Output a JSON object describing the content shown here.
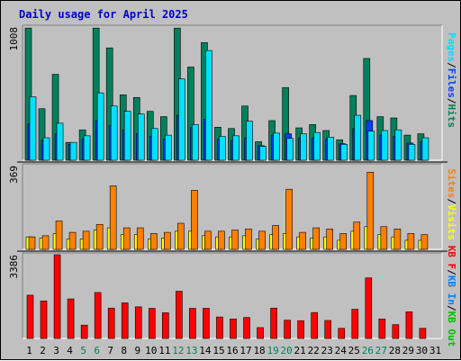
{
  "title": "Daily usage for April 2025",
  "colors": {
    "background": "#c0c0c0",
    "hits": "#00805c",
    "files": "#0040ff",
    "pages": "#00e0ff",
    "visits": "#ffff00",
    "sites": "#ff8000",
    "kbin": "#0080ff",
    "kbout": "#00c000",
    "kbf": "#ff0000",
    "weekday_label": "#000000",
    "weekend_label": "#00805c",
    "separator": "#000000"
  },
  "chart_data": [
    {
      "type": "bar",
      "name": "hits-files-pages",
      "max_label": "1008",
      "ylim": [
        0,
        1008
      ],
      "categories": [
        "1",
        "2",
        "3",
        "4",
        "5",
        "6",
        "7",
        "8",
        "9",
        "10",
        "11",
        "12",
        "13",
        "14",
        "15",
        "16",
        "17",
        "18",
        "19",
        "20",
        "21",
        "22",
        "23",
        "24",
        "25",
        "26",
        "27",
        "28",
        "29",
        "30",
        "31"
      ],
      "weekend": [
        5,
        6,
        12,
        13,
        19,
        20,
        26,
        27
      ],
      "series": [
        {
          "name": "Hits",
          "values": [
            1000,
            390,
            650,
            135,
            230,
            1000,
            850,
            495,
            475,
            370,
            330,
            1000,
            705,
            890,
            250,
            240,
            410,
            140,
            300,
            550,
            245,
            270,
            225,
            155,
            490,
            770,
            330,
            320,
            190,
            200,
            0
          ]
        },
        {
          "name": "Files",
          "values": [
            275,
            150,
            200,
            120,
            160,
            300,
            260,
            230,
            200,
            180,
            160,
            340,
            250,
            310,
            160,
            150,
            170,
            110,
            190,
            200,
            170,
            170,
            160,
            125,
            240,
            300,
            190,
            180,
            130,
            140,
            0
          ]
        },
        {
          "name": "Pages",
          "values": [
            480,
            170,
            280,
            135,
            185,
            510,
            410,
            370,
            350,
            240,
            190,
            615,
            270,
            830,
            180,
            185,
            295,
            105,
            205,
            165,
            200,
            210,
            175,
            120,
            340,
            220,
            225,
            230,
            120,
            170,
            0
          ]
        }
      ]
    },
    {
      "type": "bar",
      "name": "visits-sites",
      "max_label": "369",
      "ylim": [
        0,
        369
      ],
      "categories": [
        "1",
        "2",
        "3",
        "4",
        "5",
        "6",
        "7",
        "8",
        "9",
        "10",
        "11",
        "12",
        "13",
        "14",
        "15",
        "16",
        "17",
        "18",
        "19",
        "20",
        "21",
        "22",
        "23",
        "24",
        "25",
        "26",
        "27",
        "28",
        "29",
        "30",
        "31"
      ],
      "series": [
        {
          "name": "Visits",
          "values": [
            55,
            50,
            70,
            45,
            45,
            85,
            95,
            65,
            65,
            45,
            50,
            80,
            80,
            60,
            55,
            55,
            60,
            45,
            65,
            70,
            55,
            50,
            55,
            40,
            80,
            100,
            65,
            55,
            40,
            40,
            0
          ]
        },
        {
          "name": "Sites",
          "values": [
            55,
            60,
            125,
            75,
            80,
            110,
            280,
            95,
            95,
            70,
            75,
            115,
            260,
            80,
            80,
            85,
            90,
            80,
            105,
            265,
            75,
            95,
            90,
            70,
            120,
            340,
            100,
            90,
            70,
            65,
            0
          ]
        }
      ]
    },
    {
      "type": "bar",
      "name": "kbf",
      "max_label": "3386",
      "ylim": [
        0,
        3386
      ],
      "categories": [
        "1",
        "2",
        "3",
        "4",
        "5",
        "6",
        "7",
        "8",
        "9",
        "10",
        "11",
        "12",
        "13",
        "14",
        "15",
        "16",
        "17",
        "18",
        "19",
        "20",
        "21",
        "22",
        "23",
        "24",
        "25",
        "26",
        "27",
        "28",
        "29",
        "30",
        "31"
      ],
      "series": [
        {
          "name": "KB F",
          "values": [
            1750,
            1520,
            3386,
            1600,
            540,
            1860,
            1230,
            1440,
            1280,
            1220,
            1040,
            1910,
            1220,
            1220,
            870,
            790,
            850,
            440,
            1230,
            740,
            720,
            1050,
            730,
            410,
            1180,
            2450,
            790,
            560,
            1080,
            410,
            0
          ]
        }
      ]
    }
  ],
  "legend": {
    "top": [
      {
        "text": "Pages",
        "color": "#00e0ff"
      },
      {
        "text": "/",
        "color": "#000000"
      },
      {
        "text": "Files",
        "color": "#0040ff"
      },
      {
        "text": "/",
        "color": "#000000"
      },
      {
        "text": "Hits",
        "color": "#00805c"
      }
    ],
    "middle": [
      {
        "text": "Sites",
        "color": "#ff8000"
      },
      {
        "text": "/",
        "color": "#000000"
      },
      {
        "text": "Visits",
        "color": "#ffff00"
      }
    ],
    "bottom": [
      {
        "text": "KB F",
        "color": "#ff0000"
      },
      {
        "text": "/",
        "color": "#000000"
      },
      {
        "text": "KB In",
        "color": "#0080ff"
      },
      {
        "text": "/",
        "color": "#000000"
      },
      {
        "text": "KB Out",
        "color": "#00c000"
      }
    ]
  }
}
